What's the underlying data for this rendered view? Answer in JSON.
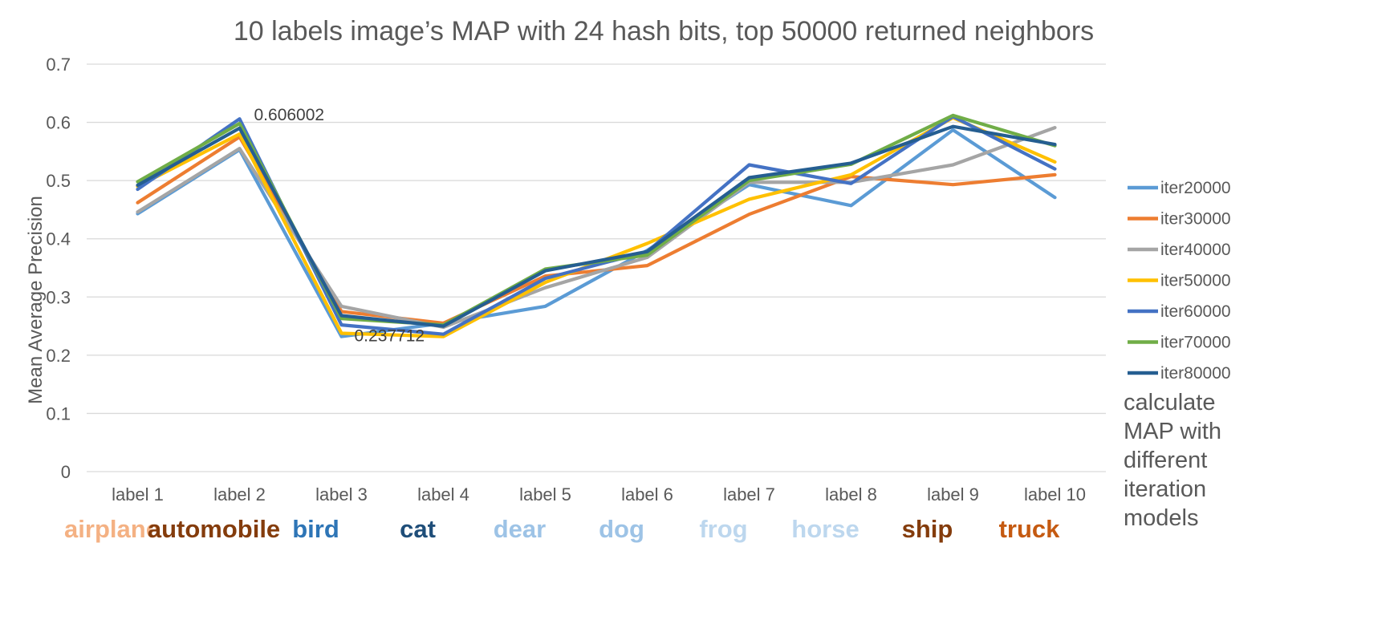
{
  "chart_data": {
    "type": "line",
    "title": "10 labels image’s MAP with 24 hash bits, top 50000 returned neighbors",
    "xlabel": "",
    "ylabel": "Mean Average Precision",
    "ylim": [
      0,
      0.7
    ],
    "yticks": [
      "0",
      "0.1",
      "0.2",
      "0.3",
      "0.4",
      "0.5",
      "0.6",
      "0.7"
    ],
    "grid": true,
    "legend_position": "right",
    "categories": [
      "label 1",
      "label 2",
      "label 3",
      "label 4",
      "label 5",
      "label 6",
      "label 7",
      "label 8",
      "label 9",
      "label 10"
    ],
    "category_names": [
      {
        "text": "airplane",
        "color": "#F4B183"
      },
      {
        "text": "automobile",
        "color": "#843C0C"
      },
      {
        "text": "bird",
        "color": "#2E75B6"
      },
      {
        "text": "cat",
        "color": "#1F4E79"
      },
      {
        "text": "dear",
        "color": "#9DC3E6"
      },
      {
        "text": "dog",
        "color": "#9DC3E6"
      },
      {
        "text": "frog",
        "color": "#BDD7EE"
      },
      {
        "text": "horse",
        "color": "#BDD7EE"
      },
      {
        "text": "ship",
        "color": "#843C0C"
      },
      {
        "text": "truck",
        "color": "#C55A11"
      }
    ],
    "series": [
      {
        "name": "iter20000",
        "color": "#5B9BD5",
        "values": [
          0.443,
          0.553,
          0.232,
          0.255,
          0.284,
          0.38,
          0.493,
          0.457,
          0.587,
          0.471
        ]
      },
      {
        "name": "iter30000",
        "color": "#ED7D31",
        "values": [
          0.462,
          0.575,
          0.275,
          0.255,
          0.336,
          0.354,
          0.442,
          0.507,
          0.493,
          0.51
        ]
      },
      {
        "name": "iter40000",
        "color": "#A5A5A5",
        "values": [
          0.446,
          0.555,
          0.284,
          0.248,
          0.316,
          0.368,
          0.497,
          0.497,
          0.527,
          0.591
        ]
      },
      {
        "name": "iter50000",
        "color": "#FFC000",
        "values": [
          0.49,
          0.58,
          0.237712,
          0.232,
          0.325,
          0.392,
          0.468,
          0.51,
          0.608,
          0.532
        ]
      },
      {
        "name": "iter60000",
        "color": "#4472C4",
        "values": [
          0.485,
          0.606002,
          0.252,
          0.236,
          0.332,
          0.378,
          0.527,
          0.495,
          0.61,
          0.52
        ]
      },
      {
        "name": "iter70000",
        "color": "#70AD47",
        "values": [
          0.498,
          0.598,
          0.263,
          0.252,
          0.348,
          0.372,
          0.5,
          0.528,
          0.612,
          0.56
        ]
      },
      {
        "name": "iter80000",
        "color": "#255E91",
        "values": [
          0.492,
          0.59,
          0.268,
          0.25,
          0.345,
          0.378,
          0.505,
          0.53,
          0.593,
          0.562
        ]
      }
    ],
    "annotations": [
      {
        "text": "0.606002",
        "series": "iter60000",
        "category": "label 2"
      },
      {
        "text": "0.237712",
        "series": "iter50000",
        "category": "label 3"
      }
    ],
    "side_note": [
      "calculate",
      "MAP with",
      "different",
      "iteration",
      "models"
    ]
  }
}
